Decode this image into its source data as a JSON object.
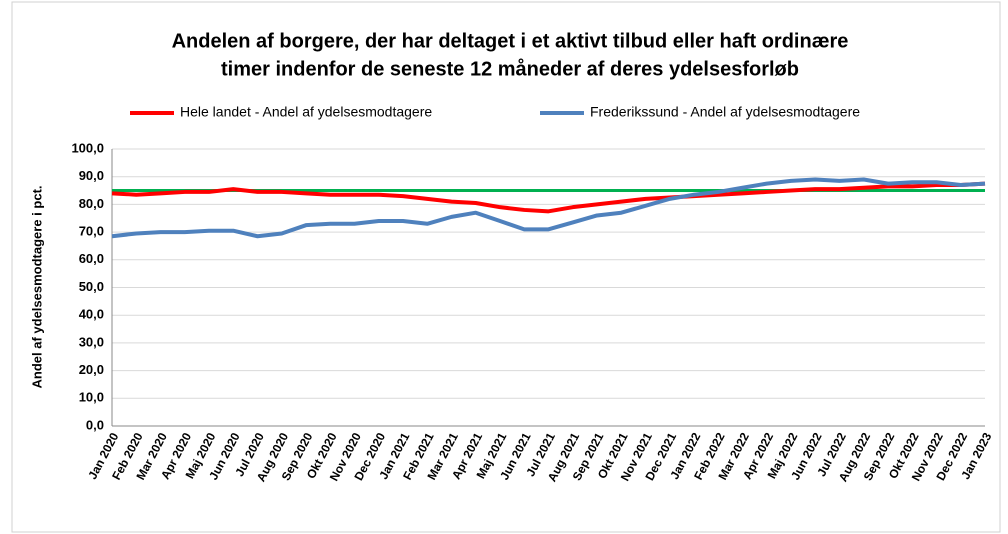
{
  "chart_data": {
    "type": "line",
    "title": [
      "Andelen af borgere, der har deltaget i et aktivt tilbud eller haft ordinære",
      "timer indenfor de seneste 12 måneder af deres ydelsesforløb"
    ],
    "y_label": "Andel af ydelsesmodtagere i pct.",
    "categories": [
      "Jan 2020",
      "Feb 2020",
      "Mar 2020",
      "Apr 2020",
      "Maj 2020",
      "Jun 2020",
      "Jul 2020",
      "Aug 2020",
      "Sep 2020",
      "Okt 2020",
      "Nov 2020",
      "Dec 2020",
      "Jan 2021",
      "Feb 2021",
      "Mar 2021",
      "Apr 2021",
      "Maj 2021",
      "Jun 2021",
      "Jul 2021",
      "Aug 2021",
      "Sep 2021",
      "Okt 2021",
      "Nov 2021",
      "Dec 2021",
      "Jan 2022",
      "Feb 2022",
      "Mar 2022",
      "Apr 2022",
      "Maj 2022",
      "Jun 2022",
      "Jul 2022",
      "Aug 2022",
      "Sep 2022",
      "Okt 2022",
      "Nov 2022",
      "Dec 2022",
      "Jan 2023"
    ],
    "series": [
      {
        "name": "Hele landet - Andel af ydelsesmodtagere",
        "color": "#ff0000",
        "values": [
          84,
          83.5,
          84,
          84.5,
          84.5,
          85.5,
          84.5,
          84.5,
          84,
          83.5,
          83.5,
          83.5,
          83,
          82,
          81,
          80.5,
          79,
          78,
          77.5,
          79,
          80,
          81,
          82,
          82.5,
          83,
          83.5,
          84,
          84.5,
          85,
          85.5,
          85.5,
          86,
          86.5,
          86.5,
          87,
          87,
          87.5
        ]
      },
      {
        "name": "Frederikssund - Andel af ydelsesmodtagere",
        "color": "#4f81bd",
        "values": [
          68.5,
          69.5,
          70,
          70,
          70.5,
          70.5,
          68.5,
          69.5,
          72.5,
          73,
          73,
          74,
          74,
          73,
          75.5,
          77,
          74,
          71,
          71,
          73.5,
          76,
          77,
          79.5,
          82,
          83.5,
          84.5,
          86,
          87.5,
          88.5,
          89,
          88.5,
          89,
          87.5,
          88,
          88,
          87,
          87.5
        ]
      }
    ],
    "reference_line": {
      "value": 85,
      "color": "#00b050"
    },
    "ylim": [
      0,
      100
    ],
    "yticks": [
      {
        "value": 0,
        "label": "0,0"
      },
      {
        "value": 10,
        "label": "10,0"
      },
      {
        "value": 20,
        "label": "20,0"
      },
      {
        "value": 30,
        "label": "30,0"
      },
      {
        "value": 40,
        "label": "40,0"
      },
      {
        "value": 50,
        "label": "50,0"
      },
      {
        "value": 60,
        "label": "60,0"
      },
      {
        "value": 70,
        "label": "70,0"
      },
      {
        "value": 80,
        "label": "80,0"
      },
      {
        "value": 90,
        "label": "90,0"
      },
      {
        "value": 100,
        "label": "100,0"
      }
    ],
    "grid": true
  }
}
